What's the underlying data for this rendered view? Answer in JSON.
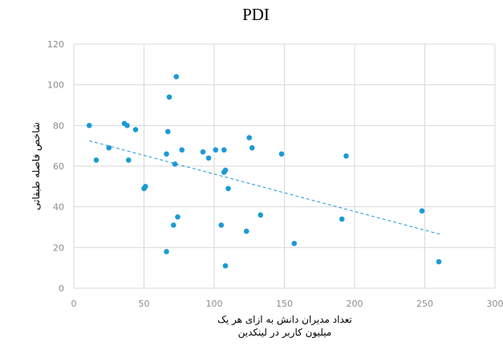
{
  "chart_data": {
    "type": "scatter",
    "title": "PDI",
    "xlabel_lines": [
      "تعداد مدیران دانش به ازای هر یک",
      "میلیون کاربر در لینکدین"
    ],
    "ylabel": "شاخص فاصله طبقاتی",
    "xlim": [
      0,
      300
    ],
    "ylim": [
      0,
      120
    ],
    "x_ticks": [
      0,
      50,
      100,
      150,
      200,
      250,
      300
    ],
    "y_ticks": [
      0,
      20,
      40,
      60,
      80,
      100,
      120
    ],
    "grid": true,
    "marker_color": "#1b9ad6",
    "trendline": {
      "style": "dashed",
      "color": "#1b9ad6",
      "x": [
        11,
        261
      ],
      "y": [
        72.5,
        26.5
      ]
    },
    "points": [
      {
        "x": 11,
        "y": 80
      },
      {
        "x": 16,
        "y": 63
      },
      {
        "x": 25,
        "y": 69
      },
      {
        "x": 36,
        "y": 81
      },
      {
        "x": 38,
        "y": 80
      },
      {
        "x": 39,
        "y": 63
      },
      {
        "x": 44,
        "y": 78
      },
      {
        "x": 50,
        "y": 49
      },
      {
        "x": 51,
        "y": 50
      },
      {
        "x": 66,
        "y": 66
      },
      {
        "x": 66,
        "y": 18
      },
      {
        "x": 67,
        "y": 77
      },
      {
        "x": 68,
        "y": 94
      },
      {
        "x": 71,
        "y": 31
      },
      {
        "x": 72,
        "y": 61
      },
      {
        "x": 73,
        "y": 104
      },
      {
        "x": 74,
        "y": 35
      },
      {
        "x": 77,
        "y": 68
      },
      {
        "x": 92,
        "y": 67
      },
      {
        "x": 96,
        "y": 64
      },
      {
        "x": 101,
        "y": 68
      },
      {
        "x": 105,
        "y": 31
      },
      {
        "x": 107,
        "y": 68
      },
      {
        "x": 107,
        "y": 57
      },
      {
        "x": 108,
        "y": 58
      },
      {
        "x": 108,
        "y": 11
      },
      {
        "x": 110,
        "y": 49
      },
      {
        "x": 123,
        "y": 28
      },
      {
        "x": 125,
        "y": 74
      },
      {
        "x": 127,
        "y": 69
      },
      {
        "x": 133,
        "y": 36
      },
      {
        "x": 148,
        "y": 66
      },
      {
        "x": 157,
        "y": 22
      },
      {
        "x": 191,
        "y": 34
      },
      {
        "x": 194,
        "y": 65
      },
      {
        "x": 248,
        "y": 38
      },
      {
        "x": 260,
        "y": 13
      }
    ]
  }
}
